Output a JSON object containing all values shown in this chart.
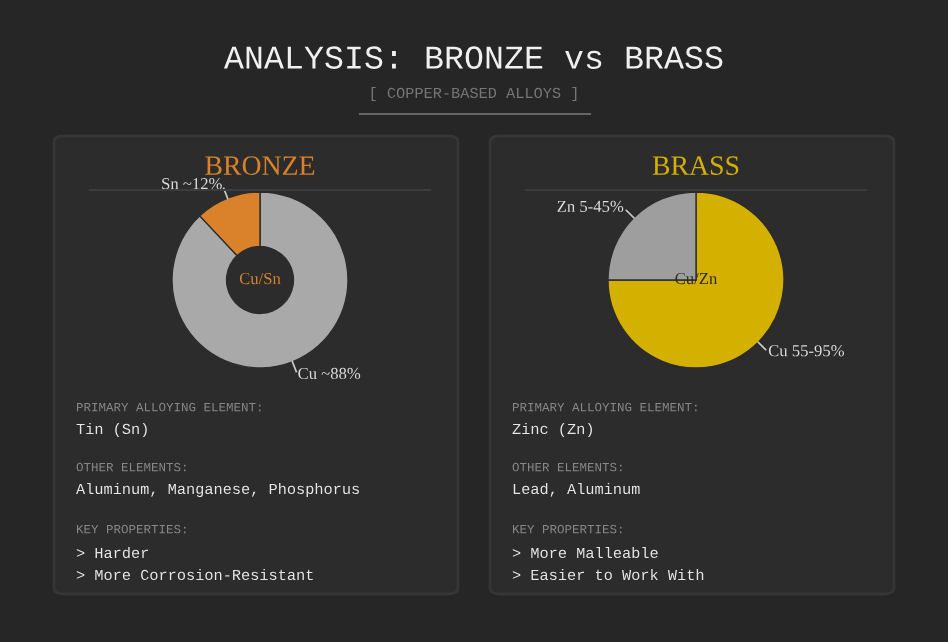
{
  "chart_data": [
    {
      "type": "other",
      "title": "ANALYSIS: BRONZE vs BRASS",
      "subtitle": "[ COPPER-BASED ALLOYS ]"
    },
    {
      "type": "donut",
      "title": "BRONZE",
      "categories": [
        "Cu ~88%",
        "Sn ~12%"
      ],
      "values": [
        88,
        12
      ],
      "colors": [
        "#a9a9a9",
        "#d9822b"
      ],
      "annotations": [
        "Cu/Sn"
      ]
    },
    {
      "type": "other",
      "annotations": [
        "PRIMARY ALLOYING ELEMENT:",
        "Tin (Sn)",
        "OTHER ELEMENTS:",
        "Aluminum, Manganese, Phosphorus",
        "KEY PROPERTIES:",
        "> Harder",
        "> More Corrosion-Resistant"
      ]
    },
    {
      "type": "pie",
      "title": "BRASS",
      "categories": [
        "Cu 55-95%",
        "Zn 5-45%"
      ],
      "values": [
        75,
        25
      ],
      "colors": [
        "#d4b000",
        "#9e9e9e"
      ],
      "annotations": [
        "Cu/Zn"
      ]
    },
    {
      "type": "other",
      "annotations": [
        "PRIMARY ALLOYING ELEMENT:",
        "Zinc (Zn)",
        "OTHER ELEMENTS:",
        "Lead, Aluminum",
        "KEY PROPERTIES:",
        "> More Malleable",
        "> Easier to Work With"
      ]
    }
  ]
}
